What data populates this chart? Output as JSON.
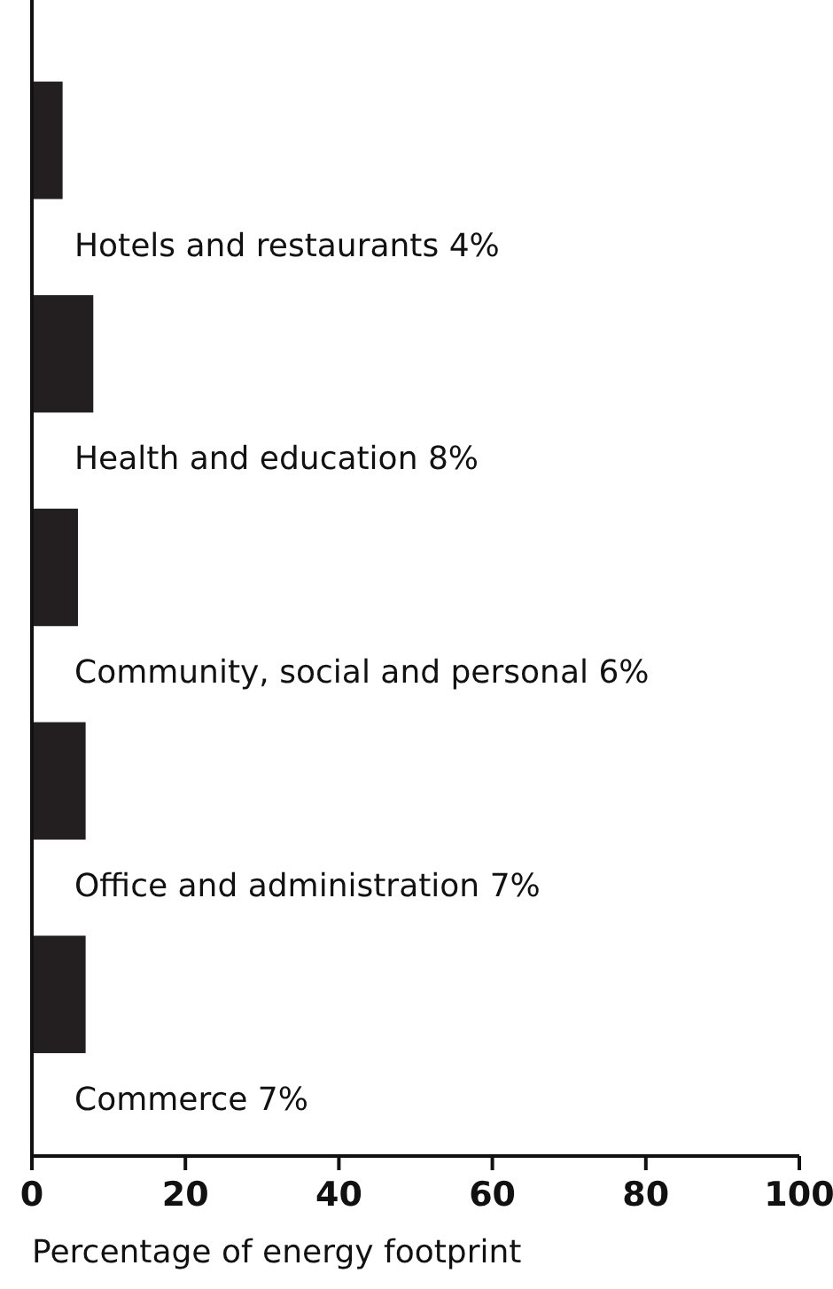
{
  "chart_data": {
    "type": "bar",
    "orientation": "horizontal",
    "xlabel": "Percentage of energy footprint",
    "categories": [
      "Hotels and restaurants 4%",
      "Health and education 8%",
      "Community, social and personal 6%",
      "Office and administration 7%",
      "Commerce 7%"
    ],
    "values": [
      4,
      8,
      6,
      7,
      7
    ],
    "color": "#231f20",
    "xlim": [
      0,
      100
    ],
    "xticks": [
      0,
      20,
      40,
      60,
      80,
      100
    ]
  }
}
